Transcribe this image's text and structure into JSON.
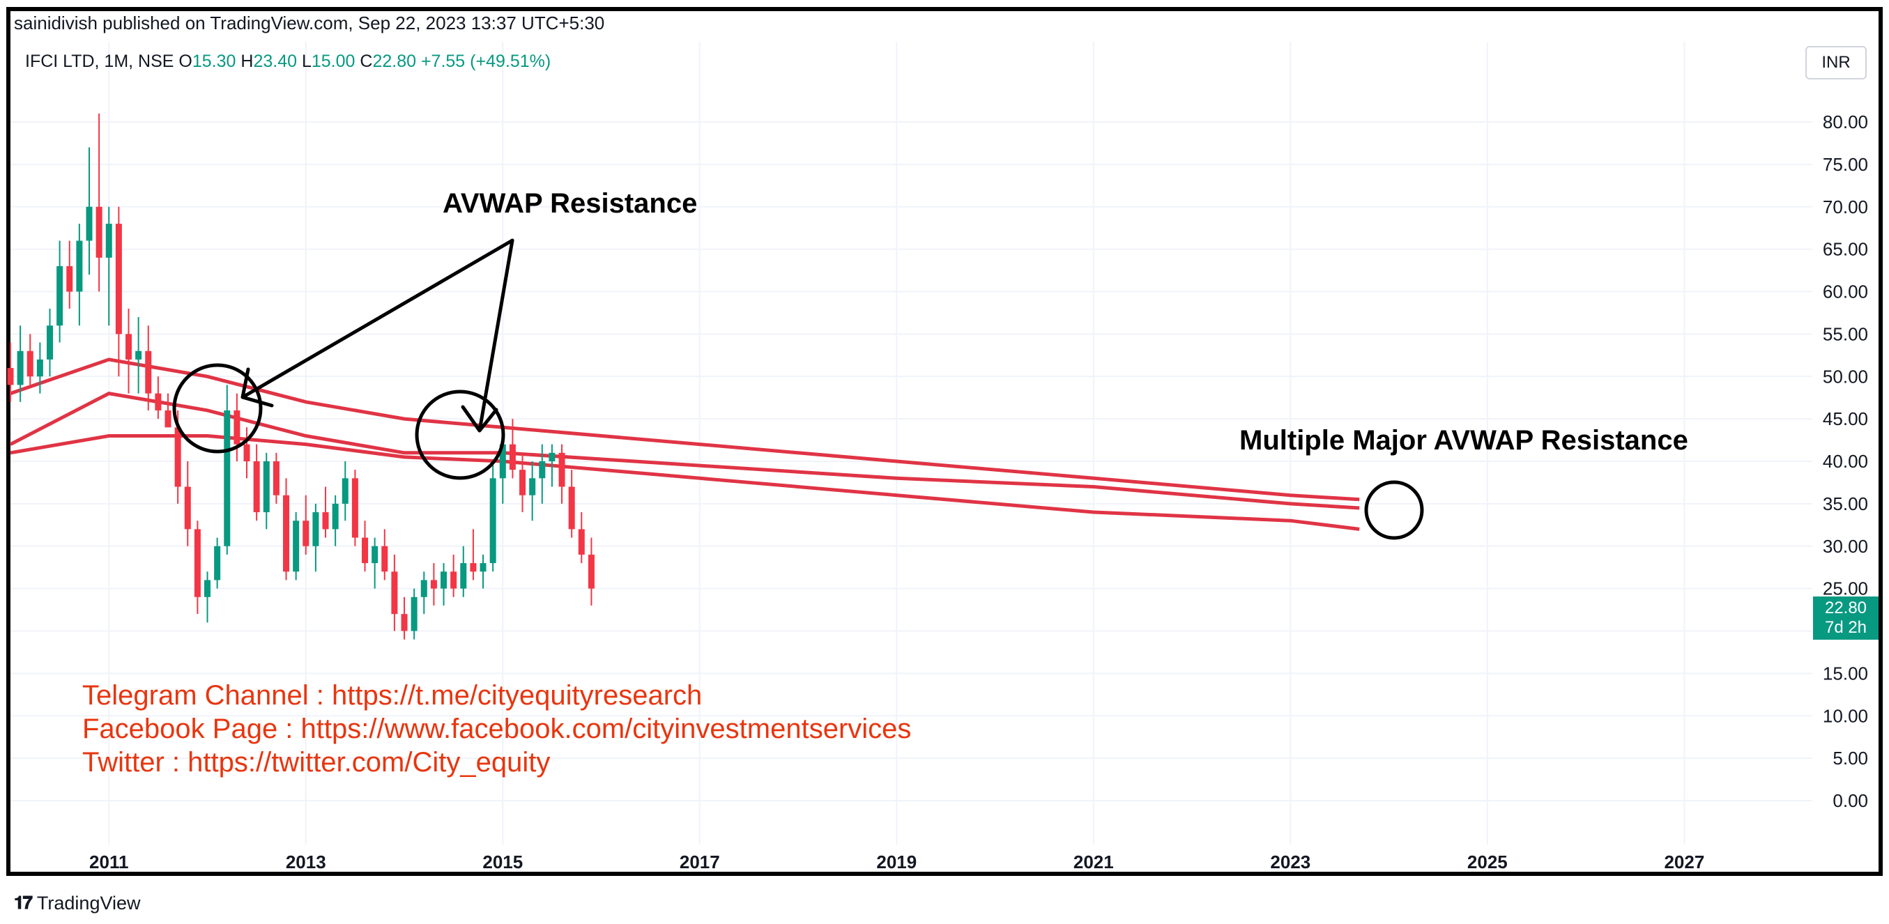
{
  "header": {
    "publisher_line": "sainidivish published on TradingView.com, Sep 22, 2023 13:37 UTC+5:30"
  },
  "legend": {
    "symbol": "IFCI LTD, 1M, NSE",
    "o_label": "O",
    "o_value": "15.30",
    "h_label": "H",
    "h_value": "23.40",
    "l_label": "L",
    "l_value": "15.00",
    "c_label": "C",
    "c_value": "22.80",
    "change": "+7.55 (+49.51%)"
  },
  "currency_button": "INR",
  "price_tag": {
    "price": "22.80",
    "countdown": "7d 2h"
  },
  "annotations": {
    "avwap_resistance": "AVWAP Resistance",
    "multiple_resistance": "Multiple Major AVWAP Resistance"
  },
  "links": {
    "telegram": "Telegram Channel : https://t.me/cityequityresearch",
    "facebook": "Facebook Page : https://www.facebook.com/cityinvestmentservices",
    "twitter": "Twitter : https://twitter.com/City_equity"
  },
  "footer": {
    "brand": "TradingView"
  },
  "colors": {
    "up": "#089981",
    "down": "#f23645",
    "avwap": "#e03445",
    "text_red": "#e8350f"
  },
  "chart_data": {
    "type": "candlestick",
    "symbol": "IFCI LTD",
    "interval": "1M",
    "currency": "INR",
    "ylim": [
      -5,
      85
    ],
    "y_ticks": [
      "0.00",
      "5.00",
      "10.00",
      "15.00",
      "20.00",
      "25.00",
      "30.00",
      "35.00",
      "40.00",
      "45.00",
      "50.00",
      "55.00",
      "60.00",
      "65.00",
      "70.00",
      "75.00",
      "80.00"
    ],
    "x_ticks": [
      "2011",
      "2013",
      "2015",
      "2017",
      "2019",
      "2021",
      "2023",
      "2025",
      "2027"
    ],
    "grid": true,
    "candles": [
      [
        2010.0,
        51,
        54,
        47,
        49
      ],
      [
        2010.1,
        49,
        56,
        47,
        53
      ],
      [
        2010.2,
        53,
        55,
        49,
        50
      ],
      [
        2010.3,
        50,
        54,
        48,
        52
      ],
      [
        2010.4,
        52,
        58,
        50,
        56
      ],
      [
        2010.5,
        56,
        66,
        54,
        63
      ],
      [
        2010.6,
        63,
        66,
        58,
        60
      ],
      [
        2010.7,
        60,
        68,
        56,
        66
      ],
      [
        2010.8,
        66,
        77,
        62,
        70
      ],
      [
        2010.9,
        70,
        81,
        60,
        64
      ],
      [
        2011.0,
        64,
        70,
        56,
        68
      ],
      [
        2011.1,
        68,
        70,
        50,
        55
      ],
      [
        2011.2,
        55,
        58,
        48,
        52
      ],
      [
        2011.3,
        52,
        57,
        48,
        53
      ],
      [
        2011.4,
        53,
        56,
        46,
        48
      ],
      [
        2011.5,
        48,
        50,
        45,
        46
      ],
      [
        2011.6,
        46,
        48,
        44,
        44
      ],
      [
        2011.7,
        44,
        46,
        35,
        37
      ],
      [
        2011.8,
        37,
        40,
        30,
        32
      ],
      [
        2011.9,
        32,
        33,
        22,
        24
      ],
      [
        2012.0,
        24,
        27,
        21,
        26
      ],
      [
        2012.1,
        26,
        31,
        25,
        30
      ],
      [
        2012.2,
        30,
        49,
        29,
        46
      ],
      [
        2012.3,
        46,
        48,
        40,
        42
      ],
      [
        2012.4,
        42,
        44,
        38,
        40
      ],
      [
        2012.5,
        40,
        42,
        33,
        34
      ],
      [
        2012.6,
        34,
        41,
        32,
        40
      ],
      [
        2012.7,
        40,
        41,
        35,
        36
      ],
      [
        2012.8,
        36,
        38,
        26,
        27
      ],
      [
        2012.9,
        27,
        34,
        26,
        33
      ],
      [
        2013.0,
        33,
        36,
        29,
        30
      ],
      [
        2013.1,
        30,
        35,
        27,
        34
      ],
      [
        2013.2,
        34,
        37,
        31,
        32
      ],
      [
        2013.3,
        32,
        36,
        30,
        35
      ],
      [
        2013.4,
        35,
        40,
        33,
        38
      ],
      [
        2013.5,
        38,
        39,
        30,
        31
      ],
      [
        2013.6,
        31,
        33,
        27,
        28
      ],
      [
        2013.7,
        28,
        31,
        25,
        30
      ],
      [
        2013.8,
        30,
        32,
        26,
        27
      ],
      [
        2013.9,
        27,
        29,
        20,
        22
      ],
      [
        2014.0,
        22,
        24,
        19,
        20
      ],
      [
        2014.1,
        20,
        25,
        19,
        24
      ],
      [
        2014.2,
        24,
        27,
        22,
        26
      ],
      [
        2014.3,
        26,
        28,
        23,
        25
      ],
      [
        2014.4,
        25,
        28,
        23,
        27
      ],
      [
        2014.5,
        27,
        29,
        24,
        25
      ],
      [
        2014.6,
        25,
        30,
        24,
        28
      ],
      [
        2014.7,
        28,
        32,
        26,
        27
      ],
      [
        2014.8,
        27,
        29,
        25,
        28
      ],
      [
        2014.9,
        28,
        40,
        27,
        38
      ],
      [
        2015.0,
        38,
        44,
        35,
        42
      ],
      [
        2015.1,
        42,
        45,
        38,
        39
      ],
      [
        2015.2,
        39,
        41,
        34,
        36
      ],
      [
        2015.3,
        36,
        40,
        33,
        38
      ],
      [
        2015.4,
        38,
        42,
        35,
        40
      ],
      [
        2015.5,
        40,
        42,
        37,
        41
      ],
      [
        2015.6,
        41,
        42,
        35,
        37
      ],
      [
        2015.7,
        37,
        39,
        31,
        32
      ],
      [
        2015.8,
        32,
        34,
        28,
        29
      ],
      [
        2015.9,
        29,
        31,
        23,
        25
      ]
    ],
    "avwap_lines": [
      {
        "points": [
          [
            2010.0,
            48
          ],
          [
            2011.0,
            52
          ],
          [
            2012.0,
            50
          ],
          [
            2013.0,
            47
          ],
          [
            2014.0,
            45
          ],
          [
            2015.0,
            44
          ],
          [
            2017.0,
            42
          ],
          [
            2019.0,
            40
          ],
          [
            2021.0,
            38
          ],
          [
            2023.0,
            36
          ],
          [
            2023.7,
            35.5
          ]
        ]
      },
      {
        "points": [
          [
            2010.0,
            42
          ],
          [
            2011.0,
            48
          ],
          [
            2012.0,
            46
          ],
          [
            2013.0,
            43
          ],
          [
            2014.0,
            41
          ],
          [
            2015.0,
            41
          ],
          [
            2017.0,
            39.5
          ],
          [
            2019.0,
            38
          ],
          [
            2021.0,
            37
          ],
          [
            2023.0,
            35
          ],
          [
            2023.7,
            34.5
          ]
        ]
      },
      {
        "points": [
          [
            2010.0,
            41
          ],
          [
            2011.0,
            43
          ],
          [
            2012.0,
            43
          ],
          [
            2013.0,
            42
          ],
          [
            2014.0,
            40.5
          ],
          [
            2015.0,
            40
          ],
          [
            2017.0,
            38
          ],
          [
            2019.0,
            36
          ],
          [
            2021.0,
            34
          ],
          [
            2023.0,
            33
          ],
          [
            2023.7,
            32
          ]
        ]
      }
    ]
  }
}
